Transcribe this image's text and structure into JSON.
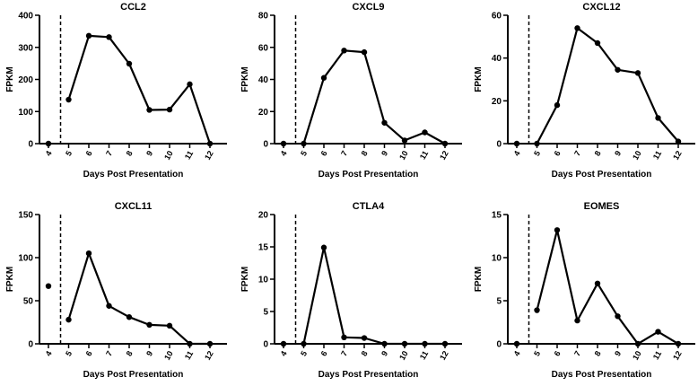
{
  "chart_data": [
    {
      "type": "line",
      "title": "CCL2",
      "xlabel": "Days Post Presentation",
      "ylabel": "FPKM",
      "x": [
        4,
        5,
        6,
        7,
        8,
        9,
        10,
        11,
        12
      ],
      "values": [
        0,
        137,
        336,
        332,
        249,
        105,
        106,
        185,
        0
      ],
      "ylim": [
        0,
        400
      ],
      "yticks": [
        0,
        100,
        200,
        300,
        400
      ],
      "xticks": [
        4,
        5,
        6,
        7,
        8,
        9,
        10,
        11,
        12
      ],
      "reference_line_x": 4.6
    },
    {
      "type": "line",
      "title": "CXCL9",
      "xlabel": "Days Post Presentation",
      "ylabel": "FPKM",
      "x": [
        4,
        5,
        6,
        7,
        8,
        9,
        10,
        11,
        12
      ],
      "values": [
        0,
        0,
        41,
        58,
        57,
        13,
        2,
        7,
        0
      ],
      "ylim": [
        0,
        80
      ],
      "yticks": [
        0,
        20,
        40,
        60,
        80
      ],
      "xticks": [
        4,
        5,
        6,
        7,
        8,
        9,
        10,
        11,
        12
      ],
      "reference_line_x": 4.6
    },
    {
      "type": "line",
      "title": "CXCL12",
      "xlabel": "Days Post Presentation",
      "ylabel": "FPKM",
      "x": [
        4,
        5,
        6,
        7,
        8,
        9,
        10,
        11,
        12
      ],
      "values": [
        0,
        0,
        18,
        54,
        47,
        34.5,
        33,
        12,
        1
      ],
      "ylim": [
        0,
        60
      ],
      "yticks": [
        0,
        20,
        40,
        60
      ],
      "xticks": [
        4,
        5,
        6,
        7,
        8,
        9,
        10,
        11,
        12
      ],
      "reference_line_x": 4.6
    },
    {
      "type": "line",
      "title": "CXCL11",
      "xlabel": "Days Post Presentation",
      "ylabel": "FPKM",
      "x": [
        4,
        5,
        6,
        7,
        8,
        9,
        10,
        11,
        12
      ],
      "values": [
        67,
        28,
        105,
        44,
        31,
        22,
        21,
        0,
        0
      ],
      "ylim": [
        0,
        150
      ],
      "yticks": [
        0,
        50,
        100,
        150
      ],
      "xticks": [
        4,
        5,
        6,
        7,
        8,
        9,
        10,
        11,
        12
      ],
      "reference_line_x": 4.6
    },
    {
      "type": "line",
      "title": "CTLA4",
      "xlabel": "Days Post Presentation",
      "ylabel": "FPKM",
      "x": [
        4,
        5,
        6,
        7,
        8,
        9,
        10,
        11,
        12
      ],
      "values": [
        0,
        0,
        14.9,
        1,
        0.9,
        0,
        0,
        0,
        0
      ],
      "ylim": [
        0,
        20
      ],
      "yticks": [
        0,
        5,
        10,
        15,
        20
      ],
      "xticks": [
        4,
        5,
        6,
        7,
        8,
        9,
        10,
        11,
        12
      ],
      "reference_line_x": 4.6
    },
    {
      "type": "line",
      "title": "EOMES",
      "xlabel": "Days Post Presentation",
      "ylabel": "FPKM",
      "x": [
        4,
        5,
        6,
        7,
        8,
        9,
        10,
        11,
        12
      ],
      "values": [
        0,
        3.9,
        13.2,
        2.7,
        7,
        3.2,
        0,
        1.4,
        0
      ],
      "ylim": [
        0,
        15
      ],
      "yticks": [
        0,
        5,
        10,
        15
      ],
      "xticks": [
        4,
        5,
        6,
        7,
        8,
        9,
        10,
        11,
        12
      ],
      "reference_line_x": 4.6
    }
  ]
}
